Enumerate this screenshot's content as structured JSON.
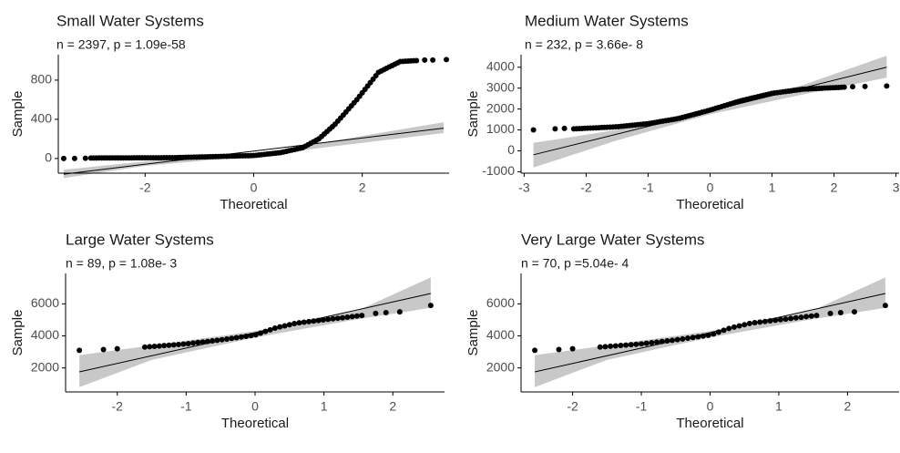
{
  "colors": {
    "points": "#000000",
    "line": "#000000",
    "band": "#bebebe",
    "axis": "#000000",
    "text": "#1a1a1a"
  },
  "chart_data": [
    {
      "type": "scatter",
      "title": "Small Water Systems",
      "subtitle": "n = 2397, p = 1.09e-58",
      "xlabel": "Theoretical",
      "ylabel": "Sample",
      "xlim": [
        -3.6,
        3.6
      ],
      "ylim": [
        -150,
        1060
      ],
      "xticks": [
        -2,
        0,
        2
      ],
      "yticks": [
        0,
        400,
        800
      ],
      "grid": false,
      "reference_line": {
        "x": [
          -3.5,
          3.5
        ],
        "y": [
          -160,
          310
        ]
      },
      "band_upper": [
        [
          -3.5,
          -115
        ],
        [
          -2,
          -30
        ],
        [
          0,
          45
        ],
        [
          2,
          230
        ],
        [
          3.5,
          370
        ]
      ],
      "band_lower": [
        [
          -3.5,
          -200
        ],
        [
          -2,
          -75
        ],
        [
          0,
          25
        ],
        [
          2,
          160
        ],
        [
          3.5,
          260
        ]
      ],
      "qq": {
        "kind": "curve",
        "x_start": -3.0,
        "x_end": 3.0,
        "step": 0.05,
        "x": [
          -3.0,
          -1.5,
          0,
          0.5,
          0.9,
          1.2,
          1.5,
          1.9,
          2.3,
          2.7,
          3.0
        ],
        "y": [
          5,
          8,
          30,
          60,
          110,
          200,
          350,
          600,
          880,
          990,
          1000
        ]
      },
      "tail_points": [
        [
          -3.5,
          0
        ],
        [
          -3.3,
          0
        ],
        [
          -3.1,
          2
        ],
        [
          3.15,
          1005
        ],
        [
          3.3,
          1005
        ],
        [
          3.55,
          1010
        ]
      ]
    },
    {
      "type": "scatter",
      "title": "Medium Water Systems",
      "subtitle": "n = 232, p = 3.66e- 8",
      "xlabel": "Theoretical",
      "ylabel": "Sample",
      "xlim": [
        -3.05,
        3.05
      ],
      "ylim": [
        -1070,
        4600
      ],
      "xticks": [
        -3,
        -2,
        -1,
        0,
        1,
        2,
        3
      ],
      "yticks": [
        -1000,
        0,
        1000,
        2000,
        3000,
        4000
      ],
      "grid": false,
      "reference_line": {
        "x": [
          -2.85,
          2.85
        ],
        "y": [
          -190,
          4000
        ]
      },
      "band_upper": [
        [
          -2.85,
          380
        ],
        [
          -1.5,
          1000
        ],
        [
          0,
          2050
        ],
        [
          1.5,
          3150
        ],
        [
          2.85,
          4550
        ]
      ],
      "band_lower": [
        [
          -2.85,
          -800
        ],
        [
          -1.5,
          500
        ],
        [
          0,
          1750
        ],
        [
          1.5,
          2700
        ],
        [
          2.85,
          3500
        ]
      ],
      "qq": {
        "kind": "curve",
        "x_start": -2.2,
        "x_end": 2.2,
        "step": 0.045,
        "x": [
          -2.2,
          -1.5,
          -1.0,
          -0.5,
          0,
          0.5,
          1.0,
          1.5,
          2.2
        ],
        "y": [
          1050,
          1150,
          1300,
          1550,
          1950,
          2400,
          2750,
          2950,
          3050
        ]
      },
      "tail_points": [
        [
          -2.85,
          1000
        ],
        [
          -2.5,
          1050
        ],
        [
          -2.35,
          1070
        ],
        [
          2.3,
          3070
        ],
        [
          2.5,
          3080
        ],
        [
          2.85,
          3100
        ]
      ]
    },
    {
      "type": "scatter",
      "title": "Large Water Systems",
      "subtitle": "n = 89, p = 1.08e- 3",
      "xlabel": "Theoretical",
      "ylabel": "Sample",
      "xlim": [
        -2.75,
        2.75
      ],
      "ylim": [
        500,
        7900
      ],
      "xticks": [
        -2,
        -1,
        0,
        1,
        2
      ],
      "yticks": [
        2000,
        4000,
        6000
      ],
      "grid": false,
      "reference_line": {
        "x": [
          -2.55,
          2.55
        ],
        "y": [
          1750,
          6650
        ]
      },
      "band_upper": [
        [
          -2.55,
          2800
        ],
        [
          -1.5,
          3400
        ],
        [
          0,
          4300
        ],
        [
          1.5,
          5600
        ],
        [
          2.55,
          7650
        ]
      ],
      "band_lower": [
        [
          -2.55,
          800
        ],
        [
          -1.5,
          2500
        ],
        [
          0,
          3900
        ],
        [
          1.5,
          5050
        ],
        [
          2.55,
          5750
        ]
      ],
      "qq": {
        "kind": "curve",
        "x_start": -1.6,
        "x_end": 1.6,
        "step": 0.07,
        "x": [
          -1.6,
          -1.0,
          -0.5,
          0,
          0.3,
          0.6,
          1.0,
          1.6
        ],
        "y": [
          3300,
          3500,
          3750,
          4050,
          4500,
          4800,
          5000,
          5300
        ]
      },
      "tail_points": [
        [
          -2.55,
          3100
        ],
        [
          -2.2,
          3150
        ],
        [
          -2.0,
          3200
        ],
        [
          1.75,
          5400
        ],
        [
          1.9,
          5450
        ],
        [
          2.1,
          5500
        ],
        [
          2.55,
          5900
        ]
      ]
    },
    {
      "type": "scatter",
      "title": "Very Large Water Systems",
      "subtitle": "n = 70, p =5.04e- 4",
      "xlabel": "Theoretical",
      "ylabel": "Sample",
      "xlim": [
        -2.75,
        2.75
      ],
      "ylim": [
        500,
        7900
      ],
      "xticks": [
        -2,
        -1,
        0,
        1,
        2
      ],
      "yticks": [
        2000,
        4000,
        6000
      ],
      "grid": false,
      "reference_line": {
        "x": [
          -2.55,
          2.55
        ],
        "y": [
          1750,
          6650
        ]
      },
      "band_upper": [
        [
          -2.55,
          2800
        ],
        [
          -1.5,
          3400
        ],
        [
          0,
          4300
        ],
        [
          1.5,
          5600
        ],
        [
          2.55,
          7650
        ]
      ],
      "band_lower": [
        [
          -2.55,
          800
        ],
        [
          -1.5,
          2500
        ],
        [
          0,
          3900
        ],
        [
          1.5,
          5050
        ],
        [
          2.55,
          5750
        ]
      ],
      "qq": {
        "kind": "curve",
        "x_start": -1.6,
        "x_end": 1.6,
        "step": 0.075,
        "x": [
          -1.6,
          -1.0,
          -0.5,
          0,
          0.3,
          0.6,
          1.0,
          1.6
        ],
        "y": [
          3300,
          3500,
          3750,
          4050,
          4500,
          4800,
          5000,
          5300
        ]
      },
      "tail_points": [
        [
          -2.55,
          3100
        ],
        [
          -2.2,
          3150
        ],
        [
          -2.0,
          3200
        ],
        [
          1.75,
          5400
        ],
        [
          1.9,
          5450
        ],
        [
          2.1,
          5500
        ],
        [
          2.55,
          5900
        ]
      ]
    }
  ]
}
